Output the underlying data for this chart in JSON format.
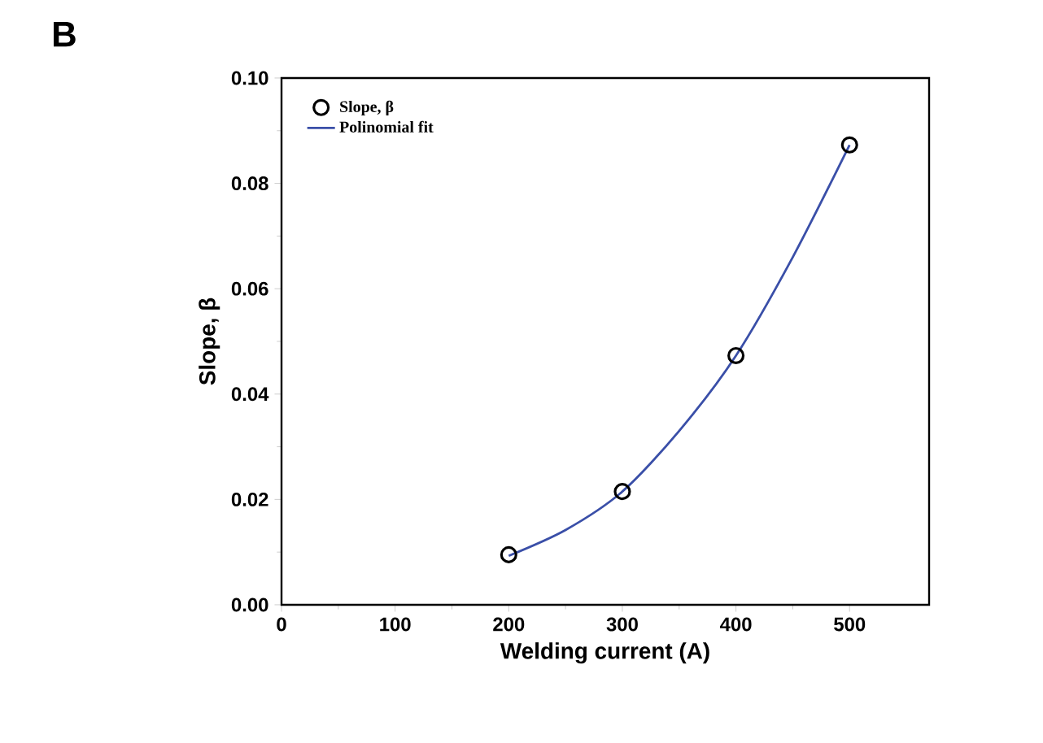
{
  "chart_data": {
    "type": "scatter",
    "xlabel": "Welding current (A)",
    "ylabel": "Slope, β",
    "annotations": [
      "B"
    ],
    "series": [
      {
        "name": "Slope, β",
        "marker": "circle",
        "color": "#000000",
        "x": [
          200,
          300,
          400,
          500
        ],
        "values": [
          0.0095,
          0.0215,
          0.0473,
          0.0873
        ]
      },
      {
        "name": "Polinomial fit",
        "type": "line",
        "marker": "none",
        "color": "#3a4fa8",
        "x": [
          200,
          250,
          300,
          350,
          400,
          450,
          500
        ],
        "values": [
          0.0093,
          0.0142,
          0.0215,
          0.033,
          0.0473,
          0.066,
          0.0873
        ]
      }
    ],
    "xlim": [
      0,
      570
    ],
    "ylim": [
      0,
      0.1
    ],
    "xticks": [
      0,
      100,
      200,
      300,
      400,
      500
    ],
    "yticks": [
      {
        "value": 0,
        "label": "0.00"
      },
      {
        "value": 0.02,
        "label": "0.02"
      },
      {
        "value": 0.04,
        "label": "0.04"
      },
      {
        "value": 0.06,
        "label": "0.06"
      },
      {
        "value": 0.08,
        "label": "0.08"
      },
      {
        "value": 0.1,
        "label": "0.10"
      }
    ],
    "legend": "top left",
    "grid": false
  }
}
